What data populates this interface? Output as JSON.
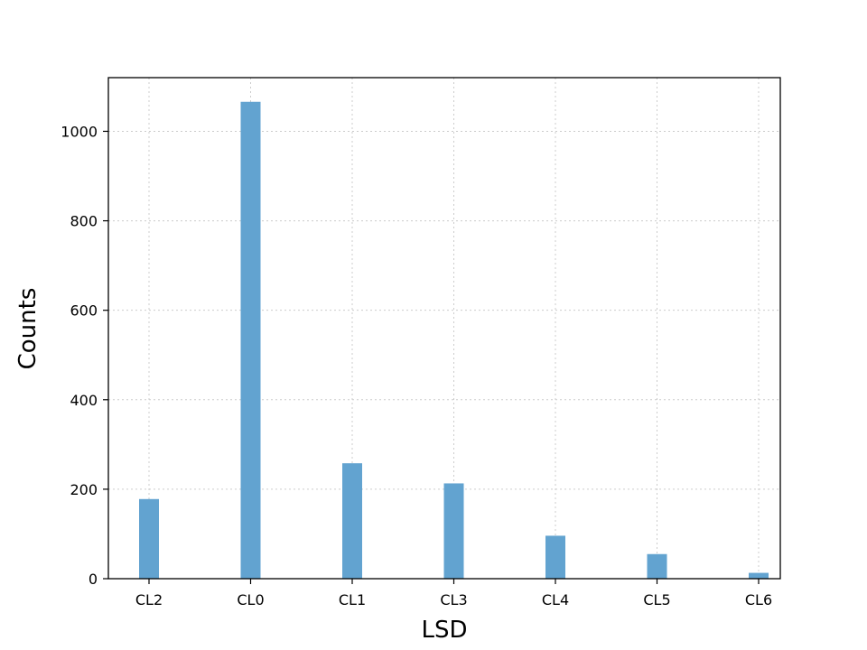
{
  "chart_data": {
    "type": "bar",
    "title": "",
    "xlabel": "LSD",
    "ylabel": "Counts",
    "categories": [
      "CL2",
      "CL0",
      "CL1",
      "CL3",
      "CL4",
      "CL5",
      "CL6"
    ],
    "values": [
      178,
      1066,
      258,
      213,
      96,
      55,
      13
    ],
    "yticks": [
      0,
      200,
      400,
      600,
      800,
      1000
    ],
    "ylim": [
      0,
      1120
    ],
    "grid": true,
    "bar_color": "#62a3d0"
  }
}
